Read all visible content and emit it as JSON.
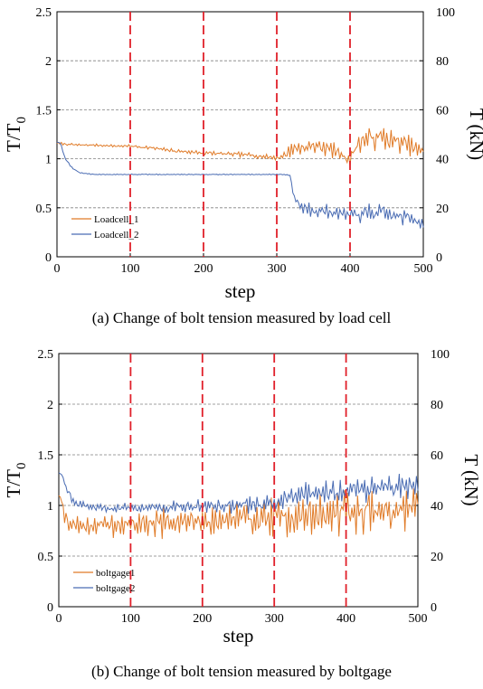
{
  "chart_data": [
    {
      "type": "line",
      "caption": "(a) Change of bolt tension measured by load cell",
      "xlabel": "step",
      "ylabel": "T/T0",
      "ylabel_right": "T (kN)",
      "xlim": [
        0,
        500
      ],
      "ylim": [
        0,
        2.5
      ],
      "ylim_right": [
        0,
        100
      ],
      "xticks": [
        "0",
        "100",
        "200",
        "300",
        "400",
        "500"
      ],
      "yticks": [
        "0",
        "0.5",
        "1",
        "1.5",
        "2",
        "2.5"
      ],
      "yticks_right": [
        "0",
        "20",
        "40",
        "60",
        "80",
        "100"
      ],
      "grid": "horizontal dashed",
      "legend_position": "bottom-left",
      "vlines": [
        100,
        200,
        300,
        400
      ],
      "series": [
        {
          "name": "Loadcell_1",
          "color": "#E07B28",
          "x": [
            0,
            10,
            30,
            50,
            80,
            100,
            130,
            160,
            200,
            230,
            260,
            300,
            310,
            320,
            340,
            360,
            380,
            400,
            410,
            420,
            440,
            460,
            480,
            500
          ],
          "y": [
            1.16,
            1.15,
            1.14,
            1.14,
            1.13,
            1.13,
            1.11,
            1.08,
            1.06,
            1.05,
            1.04,
            1.01,
            1.03,
            1.1,
            1.12,
            1.13,
            1.08,
            0.99,
            1.15,
            1.2,
            1.22,
            1.18,
            1.14,
            1.06
          ],
          "noise": [
            0.01,
            0.01,
            0.01,
            0.01,
            0.01,
            0.01,
            0.015,
            0.015,
            0.02,
            0.02,
            0.02,
            0.02,
            0.04,
            0.06,
            0.07,
            0.07,
            0.06,
            0.05,
            0.08,
            0.1,
            0.1,
            0.09,
            0.08,
            0.06
          ]
        },
        {
          "name": "Loadcell_2",
          "color": "#4A6CB3",
          "x": [
            0,
            5,
            10,
            20,
            30,
            50,
            100,
            150,
            200,
            250,
            300,
            310,
            318,
            324,
            335,
            360,
            380,
            400,
            420,
            440,
            460,
            480,
            500
          ],
          "y": [
            1.17,
            1.16,
            1.02,
            0.91,
            0.86,
            0.84,
            0.84,
            0.84,
            0.84,
            0.84,
            0.84,
            0.84,
            0.83,
            0.6,
            0.5,
            0.47,
            0.45,
            0.42,
            0.44,
            0.45,
            0.42,
            0.4,
            0.35
          ],
          "noise": [
            0,
            0,
            0.01,
            0.01,
            0.005,
            0.004,
            0.004,
            0.004,
            0.004,
            0.004,
            0.004,
            0.004,
            0.004,
            0.03,
            0.06,
            0.06,
            0.06,
            0.05,
            0.08,
            0.08,
            0.07,
            0.07,
            0.06
          ]
        }
      ]
    },
    {
      "type": "line",
      "caption": "(b) Change of bolt tension measured by boltgage",
      "xlabel": "step",
      "ylabel": "T/T0",
      "ylabel_right": "T (kN)",
      "xlim": [
        0,
        500
      ],
      "ylim": [
        0,
        2.5
      ],
      "ylim_right": [
        0,
        100
      ],
      "xticks": [
        "0",
        "100",
        "200",
        "300",
        "400",
        "500"
      ],
      "yticks": [
        "0",
        "0.5",
        "1",
        "1.5",
        "2",
        "2.5"
      ],
      "yticks_right": [
        "0",
        "20",
        "40",
        "60",
        "80",
        "100"
      ],
      "grid": "horizontal dashed",
      "legend_position": "bottom-left",
      "vlines": [
        100,
        200,
        300,
        400
      ],
      "series": [
        {
          "name": "boltgage1",
          "color": "#E07B28",
          "x": [
            0,
            3,
            8,
            15,
            30,
            60,
            100,
            150,
            200,
            250,
            300,
            350,
            400,
            450,
            500
          ],
          "y": [
            1.1,
            1.08,
            0.9,
            0.82,
            0.8,
            0.8,
            0.81,
            0.83,
            0.85,
            0.87,
            0.88,
            0.9,
            0.93,
            0.95,
            0.97
          ],
          "noise": [
            0.01,
            0.02,
            0.06,
            0.08,
            0.08,
            0.09,
            0.1,
            0.12,
            0.13,
            0.14,
            0.15,
            0.16,
            0.18,
            0.2,
            0.2
          ]
        },
        {
          "name": "boltgage2",
          "color": "#4A6CB3",
          "x": [
            0,
            5,
            10,
            20,
            40,
            70,
            100,
            150,
            200,
            250,
            300,
            320,
            350,
            400,
            450,
            500
          ],
          "y": [
            1.32,
            1.3,
            1.18,
            1.04,
            0.99,
            0.97,
            0.98,
            0.98,
            0.99,
            1.0,
            1.02,
            1.1,
            1.13,
            1.15,
            1.18,
            1.2
          ],
          "noise": [
            0.01,
            0.01,
            0.03,
            0.04,
            0.03,
            0.03,
            0.04,
            0.05,
            0.06,
            0.06,
            0.07,
            0.08,
            0.09,
            0.1,
            0.11,
            0.1
          ]
        }
      ]
    }
  ]
}
